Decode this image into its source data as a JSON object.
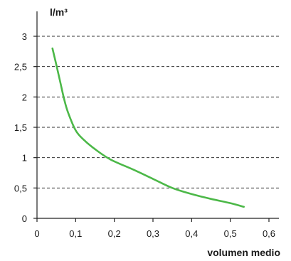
{
  "chart_data": {
    "type": "line",
    "title": "",
    "xlabel": "volumen medio",
    "ylabel": "l/m³",
    "xlim": [
      0,
      0.6
    ],
    "ylim": [
      0,
      3
    ],
    "x_ticks": [
      0,
      0.1,
      0.2,
      0.3,
      0.4,
      0.5,
      0.6
    ],
    "x_tick_labels": [
      "0",
      "0,1",
      "0,2",
      "0,3",
      "0,4",
      "0,5",
      "0,6"
    ],
    "y_ticks": [
      0,
      0.5,
      1,
      1.5,
      2,
      2.5,
      3
    ],
    "y_tick_labels": [
      "0",
      "0,5",
      "1",
      "1,5",
      "2",
      "2,5",
      "3"
    ],
    "grid": "horizontal dashed",
    "series": [
      {
        "color": "#4cb848",
        "x": [
          0.04,
          0.05,
          0.06,
          0.07,
          0.08,
          0.1,
          0.12,
          0.15,
          0.19,
          0.25,
          0.3,
          0.35,
          0.4,
          0.45,
          0.5,
          0.535
        ],
        "y": [
          2.8,
          2.53,
          2.25,
          1.97,
          1.75,
          1.45,
          1.3,
          1.14,
          0.97,
          0.8,
          0.65,
          0.5,
          0.4,
          0.32,
          0.25,
          0.19
        ]
      }
    ]
  }
}
